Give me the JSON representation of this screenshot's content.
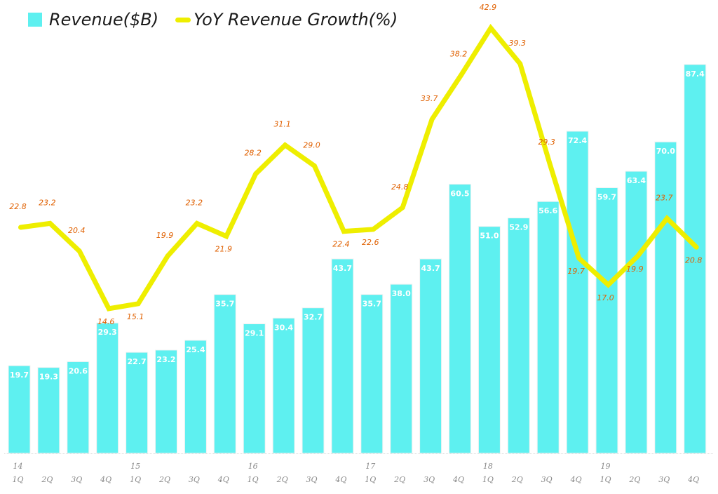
{
  "chart_data": {
    "type": "bar",
    "title": "",
    "xlabel": "",
    "ylabel": "",
    "legend_position": "top-left",
    "grid": false,
    "categories": [
      "1Q",
      "2Q",
      "3Q",
      "4Q",
      "1Q",
      "2Q",
      "3Q",
      "4Q",
      "1Q",
      "2Q",
      "3Q",
      "4Q",
      "1Q",
      "2Q",
      "3Q",
      "4Q",
      "1Q",
      "2Q",
      "3Q",
      "4Q",
      "1Q",
      "2Q",
      "3Q",
      "4Q"
    ],
    "year_labels": [
      "14",
      "",
      "",
      "",
      "15",
      "",
      "",
      "",
      "16",
      "",
      "",
      "",
      "17",
      "",
      "",
      "",
      "18",
      "",
      "",
      "",
      "19",
      "",
      "",
      ""
    ],
    "series": [
      {
        "name": "Revenue($B)",
        "type": "bar",
        "color": "#5EF0F0",
        "values": [
          19.7,
          19.3,
          20.6,
          29.3,
          22.7,
          23.2,
          25.4,
          35.7,
          29.1,
          30.4,
          32.7,
          43.7,
          35.7,
          38.0,
          43.7,
          60.5,
          51.0,
          52.9,
          56.6,
          72.4,
          59.7,
          63.4,
          70.0,
          87.4
        ],
        "labels": [
          "19.7",
          "19.3",
          "20.6",
          "29.3",
          "22.7",
          "23.2",
          "25.4",
          "35.7",
          "29.1",
          "30.4",
          "32.7",
          "43.7",
          "35.7",
          "38.0",
          "43.7",
          "60.5",
          "51.0",
          "52.9",
          "56.6",
          "72.4",
          "59.7",
          "63.4",
          "70.0",
          "87.4"
        ],
        "ylim": [
          0,
          90
        ]
      },
      {
        "name": "YoY Revenue Growth(%)",
        "type": "line",
        "color": "#EEEE00",
        "label_color": "#E06000",
        "values": [
          22.8,
          23.2,
          20.4,
          14.6,
          15.1,
          19.9,
          23.2,
          21.9,
          28.2,
          31.1,
          29.0,
          22.4,
          22.6,
          24.8,
          33.7,
          38.2,
          42.9,
          39.3,
          29.3,
          19.7,
          17.0,
          19.9,
          23.7,
          20.8
        ],
        "labels": [
          "22.8",
          "23.2",
          "20.4",
          "14.6",
          "15.1",
          "19.9",
          "23.2",
          "21.9",
          "28.2",
          "31.1",
          "29.0",
          "22.4",
          "22.6",
          "24.8",
          "33.7",
          "38.2",
          "42.9",
          "39.3",
          "29.3",
          "19.7",
          "17.0",
          "19.9",
          "23.7",
          "20.8"
        ],
        "label_side": [
          "above",
          "above",
          "above",
          "below",
          "below",
          "above",
          "above",
          "below",
          "above",
          "above",
          "above",
          "below",
          "below",
          "above",
          "above",
          "above",
          "above",
          "above",
          "above",
          "below",
          "below",
          "below",
          "above",
          "below"
        ],
        "ylim": [
          0,
          45
        ]
      }
    ]
  },
  "legend": {
    "bar_label": "Revenue($B)",
    "line_label": "YoY Revenue Growth(%)"
  }
}
